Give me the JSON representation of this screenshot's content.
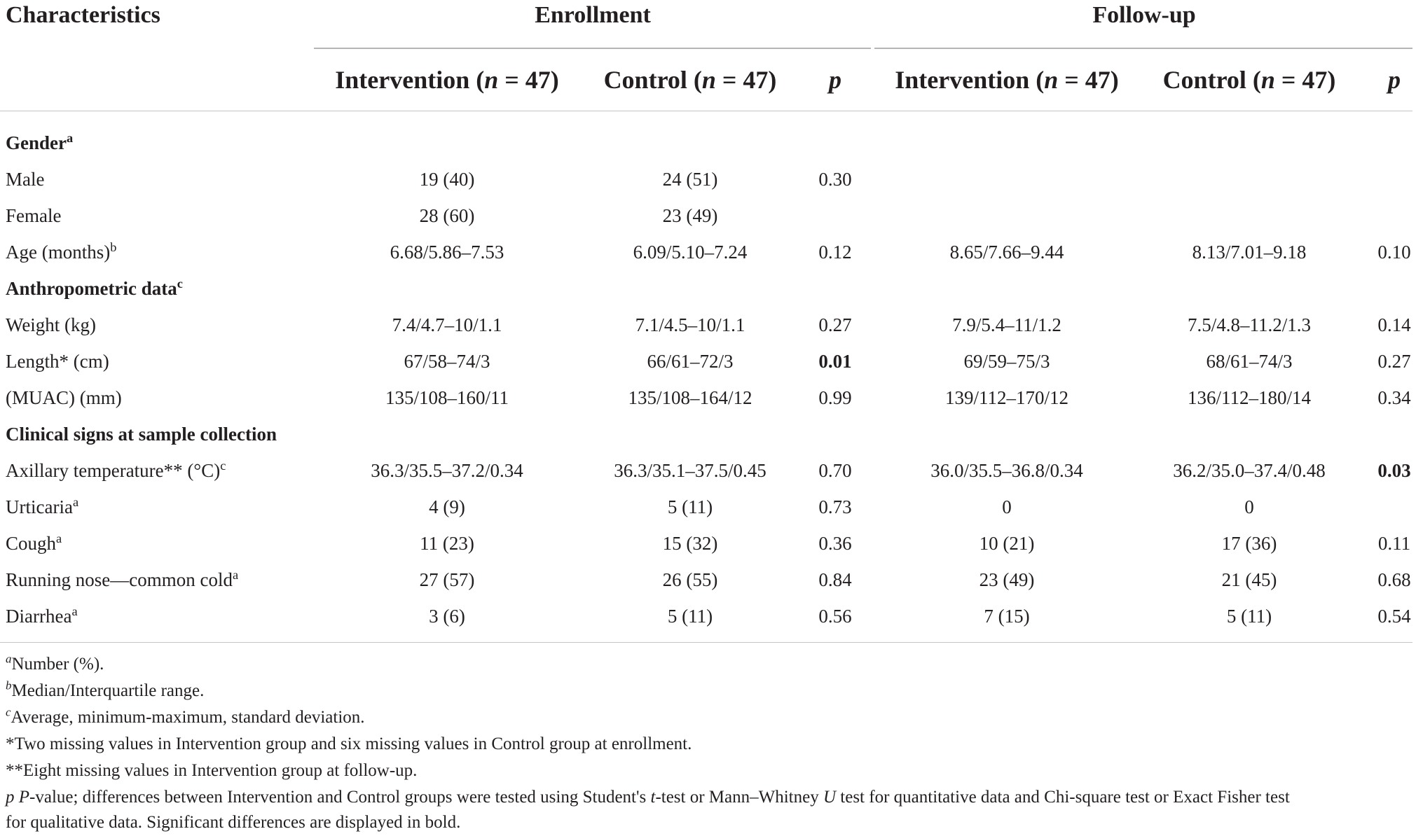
{
  "header": {
    "characteristics": "Characteristics",
    "enrollment": "Enrollment",
    "followup": "Follow-up",
    "sub": {
      "intervention": "Intervention (",
      "control": "Control (",
      "n_label": "n",
      "n_value": " = 47)",
      "p": "p"
    }
  },
  "rows": [
    {
      "label": "Gender",
      "sup": "a",
      "section": true,
      "cells": [
        "",
        "",
        "",
        "",
        "",
        ""
      ]
    },
    {
      "label": "Male",
      "sup": "",
      "section": false,
      "cells": [
        "19 (40)",
        "24 (51)",
        "0.30",
        "",
        "",
        ""
      ]
    },
    {
      "label": "Female",
      "sup": "",
      "section": false,
      "cells": [
        "28 (60)",
        "23 (49)",
        "",
        "",
        "",
        ""
      ]
    },
    {
      "label": "Age (months)",
      "sup": "b",
      "section": false,
      "cells": [
        "6.68/5.86–7.53",
        "6.09/5.10–7.24",
        "0.12",
        "8.65/7.66–9.44",
        "8.13/7.01–9.18",
        "0.10"
      ]
    },
    {
      "label": "Anthropometric data",
      "sup": "c",
      "section": true,
      "cells": [
        "",
        "",
        "",
        "",
        "",
        ""
      ]
    },
    {
      "label": "Weight (kg)",
      "sup": "",
      "section": false,
      "cells": [
        "7.4/4.7–10/1.1",
        "7.1/4.5–10/1.1",
        "0.27",
        "7.9/5.4–11/1.2",
        "7.5/4.8–11.2/1.3",
        "0.14"
      ]
    },
    {
      "label": "Length* (cm)",
      "sup": "",
      "section": false,
      "cells": [
        "67/58–74/3",
        "66/61–72/3",
        "0.01",
        "69/59–75/3",
        "68/61–74/3",
        "0.27"
      ],
      "bold_p_enroll": true
    },
    {
      "label": "(MUAC) (mm)",
      "sup": "",
      "section": false,
      "cells": [
        "135/108–160/11",
        "135/108–164/12",
        "0.99",
        "139/112–170/12",
        "136/112–180/14",
        "0.34"
      ]
    },
    {
      "label": "Clinical signs at sample collection",
      "sup": "",
      "section": true,
      "cells": [
        "",
        "",
        "",
        "",
        "",
        ""
      ]
    },
    {
      "label": "Axillary temperature** (°C)",
      "sup": "c",
      "section": false,
      "cells": [
        "36.3/35.5–37.2/0.34",
        "36.3/35.1–37.5/0.45",
        "0.70",
        "36.0/35.5–36.8/0.34",
        "36.2/35.0–37.4/0.48",
        "0.03"
      ],
      "bold_p_follow": true
    },
    {
      "label": "Urticaria",
      "sup": "a",
      "section": false,
      "cells": [
        "4 (9)",
        "5 (11)",
        "0.73",
        "0",
        "0",
        ""
      ]
    },
    {
      "label": "Cough",
      "sup": "a",
      "section": false,
      "cells": [
        "11 (23)",
        "15 (32)",
        "0.36",
        "10 (21)",
        "17 (36)",
        "0.11"
      ]
    },
    {
      "label": "Running nose—common cold",
      "sup": "a",
      "section": false,
      "cells": [
        "27 (57)",
        "26 (55)",
        "0.84",
        "23 (49)",
        "21 (45)",
        "0.68"
      ]
    },
    {
      "label": "Diarrhea",
      "sup": "a",
      "section": false,
      "cells": [
        "3 (6)",
        "5 (11)",
        "0.56",
        "7 (15)",
        "5 (11)",
        "0.54"
      ]
    }
  ],
  "footnotes": {
    "a_mark": "a",
    "a_text": "Number (%).",
    "b_mark": "b",
    "b_text": "Median/Interquartile range.",
    "c_mark": "c",
    "c_text": "Average, minimum-maximum, standard deviation.",
    "star1": "*Two missing values in Intervention group and six missing values in Control group at enrollment.",
    "star2": "**Eight missing values in Intervention group at follow-up.",
    "p_line1_p": "p",
    "p_line1_P": "P",
    "p_line1_a": "-value; differences between Intervention and Control groups were tested using Student's ",
    "p_line1_t": "t",
    "p_line1_b": "-test or Mann–Whitney ",
    "p_line1_U": "U",
    "p_line1_c": " test for quantitative data and Chi-square test or Exact Fisher test",
    "p_line2": "for qualitative data. Significant differences are displayed in bold."
  }
}
